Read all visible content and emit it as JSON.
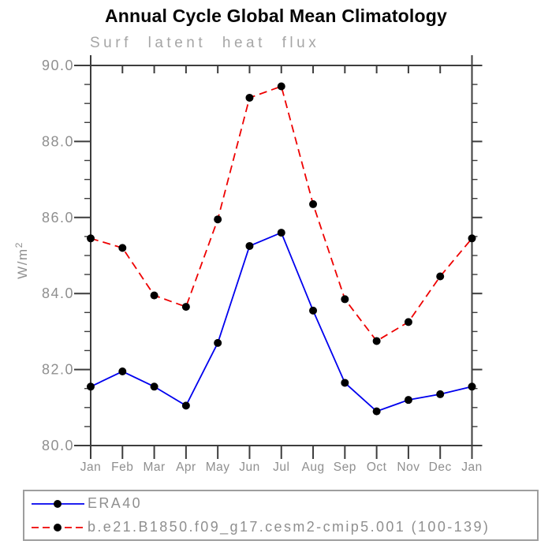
{
  "header": {
    "title": "Annual Cycle Global Mean Climatology"
  },
  "chart_data": {
    "type": "line",
    "title": "Annual Cycle Global Mean Climatology",
    "subtitle": "Surf latent heat flux",
    "xlabel": "",
    "ylabel": {
      "base": "W/m",
      "exponent": "2",
      "text": "W/m^2"
    },
    "categories": [
      "Jan",
      "Feb",
      "Mar",
      "Apr",
      "May",
      "Jun",
      "Jul",
      "Aug",
      "Sep",
      "Oct",
      "Nov",
      "Dec",
      "Jan"
    ],
    "series": [
      {
        "name": "ERA40",
        "color": "#0000ee",
        "style": "solid",
        "marker": "circle",
        "marker_color": "#000000",
        "values": [
          81.55,
          81.95,
          81.55,
          81.05,
          82.7,
          85.25,
          85.6,
          83.55,
          81.65,
          80.9,
          81.2,
          81.35,
          81.55
        ]
      },
      {
        "name": "b.e21.B1850.f09_g17.cesm2-cmip5.001 (100-139)",
        "color": "#ee0000",
        "style": "dashed",
        "marker": "circle",
        "marker_color": "#000000",
        "values": [
          85.45,
          85.2,
          83.95,
          83.65,
          85.95,
          89.15,
          89.45,
          86.35,
          83.85,
          82.75,
          83.25,
          84.45,
          85.45
        ]
      }
    ],
    "ylim": [
      80,
      90
    ],
    "ytick_values": [
      80,
      82,
      84,
      86,
      88,
      90
    ],
    "ytick_labels": [
      "80.0",
      "82.0",
      "84.0",
      "86.0",
      "88.0",
      "90.0"
    ],
    "ytick_minor_step": 0.5,
    "grid": false,
    "legend_position": "bottom-left",
    "colors": {
      "axis": "#3d3d3d",
      "tick_label": "#8f8f8f",
      "subtitle": "#a6a6a6",
      "legend_text": "#8f8f8f",
      "legend_border": "#9e9e9e"
    }
  }
}
